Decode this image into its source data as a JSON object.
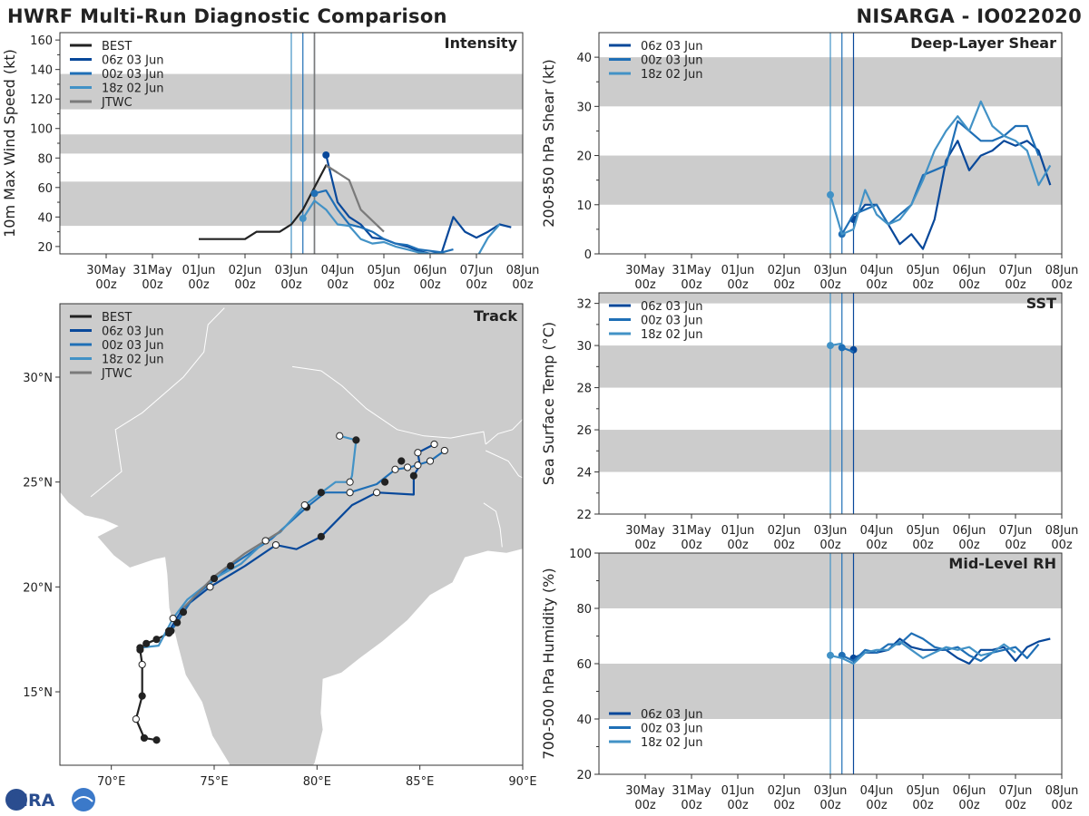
{
  "header": {
    "left_title": "HWRF Multi-Run Diagnostic Comparison",
    "right_title": "NISARGA - IO022020",
    "logo_text": "CIRA"
  },
  "colors": {
    "best": "#222222",
    "run06z": "#08489a",
    "run00z": "#1f6fb6",
    "run18z": "#4292c6",
    "jtwc": "#7a7a7a",
    "band": "#cccccc",
    "land": "#cccccc"
  },
  "time_axis": {
    "min": -1.0,
    "max": 9.0,
    "ticks": [
      0,
      1,
      2,
      3,
      4,
      5,
      6,
      7,
      8,
      9
    ],
    "labels": [
      [
        "30May",
        "00z"
      ],
      [
        "31May",
        "00z"
      ],
      [
        "01Jun",
        "00z"
      ],
      [
        "02Jun",
        "00z"
      ],
      [
        "03Jun",
        "00z"
      ],
      [
        "04Jun",
        "00z"
      ],
      [
        "05Jun",
        "00z"
      ],
      [
        "06Jun",
        "00z"
      ],
      [
        "07Jun",
        "00z"
      ],
      [
        "08Jun",
        "00z"
      ]
    ],
    "run_init_lines": [
      4.0,
      4.25,
      4.5
    ]
  },
  "chart_data": [
    {
      "id": "intensity",
      "type": "line",
      "title": "Intensity",
      "ylabel": "10m Max Wind Speed (kt)",
      "ylim": [
        15,
        165
      ],
      "yticks": [
        20,
        40,
        60,
        80,
        100,
        120,
        140,
        160
      ],
      "shaded_bands": [
        [
          34,
          64
        ],
        [
          83,
          96
        ],
        [
          113,
          137
        ]
      ],
      "extra_lines": [
        {
          "x": 4.5,
          "color_key": "jtwc",
          "width": 1.6
        }
      ],
      "legend": [
        "BEST",
        "06z 03 Jun",
        "00z 03 Jun",
        "18z 02 Jun",
        "JTWC"
      ],
      "series": [
        {
          "name": "BEST",
          "color_key": "best",
          "width": 2.2,
          "x": [
            2.0,
            2.25,
            2.5,
            2.75,
            3.0,
            3.25,
            3.5,
            3.75,
            4.0,
            4.25,
            4.5
          ],
          "y": [
            25,
            25,
            25,
            25,
            25,
            30,
            30,
            30,
            35,
            45,
            60
          ]
        },
        {
          "name": "BEST2",
          "color_key": "best",
          "width": 2.2,
          "x": [
            4.5,
            4.75,
            5.0
          ],
          "y": [
            60,
            75,
            70
          ]
        },
        {
          "name": "06z 03 Jun",
          "color_key": "run06z",
          "width": 2.2,
          "marker_first": true,
          "x": [
            4.75,
            5.0,
            5.25,
            5.5,
            5.75,
            6.0,
            6.25,
            6.5,
            6.75,
            7.0,
            7.25,
            7.5,
            7.75,
            8.0,
            8.25,
            8.5,
            8.75
          ],
          "y": [
            82,
            50,
            40,
            35,
            26,
            25,
            22,
            20,
            17,
            15,
            16,
            40,
            30,
            26,
            30,
            35,
            33
          ]
        },
        {
          "name": "00z 03 Jun",
          "color_key": "run00z",
          "width": 2.2,
          "marker_first": true,
          "x": [
            4.5,
            4.75,
            5.0,
            5.25,
            5.5,
            5.75,
            6.0,
            6.25,
            6.5,
            6.75,
            7.0,
            7.25,
            7.5
          ],
          "y": [
            56,
            58,
            45,
            35,
            33,
            30,
            25,
            22,
            21,
            18,
            17,
            16,
            18
          ]
        },
        {
          "name": "18z 02 Jun",
          "color_key": "run18z",
          "width": 2.2,
          "marker_first": true,
          "x": [
            4.25,
            4.5,
            4.75,
            5.0,
            5.25,
            5.5,
            5.75,
            6.0,
            6.25,
            6.5,
            6.75,
            7.0,
            7.25,
            7.5,
            7.75,
            8.0,
            8.25,
            8.5
          ],
          "y": [
            39,
            51,
            45,
            35,
            34,
            25,
            22,
            23,
            20,
            18,
            16,
            15,
            15,
            14,
            13,
            12,
            26,
            35
          ]
        },
        {
          "name": "JTWC",
          "color_key": "jtwc",
          "width": 2.2,
          "x": [
            4.75,
            5.0,
            5.25,
            5.5,
            6.0
          ],
          "y": [
            75,
            70,
            65,
            45,
            30
          ]
        }
      ]
    },
    {
      "id": "shear",
      "type": "line",
      "title": "Deep-Layer Shear",
      "ylabel": "200-850 hPa Shear (kt)",
      "ylim": [
        0,
        45
      ],
      "yticks": [
        0,
        10,
        20,
        30,
        40
      ],
      "shaded_bands": [
        [
          10,
          20
        ],
        [
          30,
          40
        ]
      ],
      "legend": [
        "06z 03 Jun",
        "00z 03 Jun",
        "18z 02 Jun"
      ],
      "series": [
        {
          "name": "06z 03 Jun",
          "color_key": "run06z",
          "width": 2.2,
          "marker_first": true,
          "x": [
            4.5,
            4.75,
            5.0,
            5.25,
            5.5,
            5.75,
            6.0,
            6.25,
            6.5,
            6.75,
            7.0,
            7.25,
            7.5,
            7.75,
            8.0,
            8.25,
            8.5,
            8.75
          ],
          "y": [
            7,
            10,
            10,
            6,
            2,
            4,
            1,
            7,
            19,
            23,
            17,
            20,
            21,
            23,
            22,
            23,
            21,
            14
          ]
        },
        {
          "name": "00z 03 Jun",
          "color_key": "run00z",
          "width": 2.2,
          "marker_first": true,
          "x": [
            4.25,
            4.5,
            4.75,
            5.0,
            5.25,
            5.5,
            5.75,
            6.0,
            6.25,
            6.5,
            6.75,
            7.0,
            7.25,
            7.5,
            7.75,
            8.0,
            8.25,
            8.5
          ],
          "y": [
            4,
            8,
            9,
            10,
            6,
            8,
            10,
            16,
            17,
            18,
            27,
            25,
            23,
            23,
            24,
            26,
            26,
            20
          ]
        },
        {
          "name": "18z 02 Jun",
          "color_key": "run18z",
          "width": 2.2,
          "marker_first": true,
          "x": [
            4.0,
            4.25,
            4.5,
            4.75,
            5.0,
            5.25,
            5.5,
            5.75,
            6.0,
            6.25,
            6.5,
            6.75,
            7.0,
            7.25,
            7.5,
            7.75,
            8.0,
            8.25,
            8.5,
            8.75
          ],
          "y": [
            12,
            4,
            5,
            13,
            8,
            6,
            7,
            10,
            15,
            21,
            25,
            28,
            25,
            31,
            26,
            24,
            23,
            21,
            14,
            18
          ]
        }
      ]
    },
    {
      "id": "sst",
      "type": "line",
      "title": "SST",
      "ylabel": "Sea Surface Temp (°C)",
      "ylim": [
        22,
        32.5
      ],
      "yticks": [
        22,
        24,
        26,
        28,
        30,
        32
      ],
      "shaded_bands": [
        [
          24,
          26
        ],
        [
          28,
          30
        ],
        [
          32,
          32.5
        ]
      ],
      "legend": [
        "06z 03 Jun",
        "00z 03 Jun",
        "18z 02 Jun"
      ],
      "series": [
        {
          "name": "06z 03 Jun",
          "color_key": "run06z",
          "width": 2.2,
          "marker_first": true,
          "x": [
            4.5
          ],
          "y": [
            29.8
          ]
        },
        {
          "name": "00z 03 Jun",
          "color_key": "run00z",
          "width": 2.2,
          "marker_first": true,
          "x": [
            4.25,
            4.5
          ],
          "y": [
            29.9,
            29.7
          ]
        },
        {
          "name": "18z 02 Jun",
          "color_key": "run18z",
          "width": 2.2,
          "marker_first": true,
          "x": [
            4.0,
            4.25
          ],
          "y": [
            30.0,
            30.1
          ]
        }
      ]
    },
    {
      "id": "rh",
      "type": "line",
      "title": "Mid-Level RH",
      "ylabel": "700-500 hPa Humidity (%)",
      "ylim": [
        20,
        100
      ],
      "yticks": [
        20,
        40,
        60,
        80,
        100
      ],
      "shaded_bands": [
        [
          40,
          60
        ],
        [
          80,
          100
        ]
      ],
      "legend": [
        "06z 03 Jun",
        "00z 03 Jun",
        "18z 02 Jun"
      ],
      "legend_position": "bottom-left",
      "series": [
        {
          "name": "06z 03 Jun",
          "color_key": "run06z",
          "width": 2.2,
          "marker_first": true,
          "x": [
            4.5,
            4.75,
            5.0,
            5.25,
            5.5,
            5.75,
            6.0,
            6.25,
            6.5,
            6.75,
            7.0,
            7.25,
            7.5,
            7.75,
            8.0,
            8.25,
            8.5,
            8.75
          ],
          "y": [
            62,
            64,
            64,
            65,
            69,
            66,
            65,
            65,
            65,
            62,
            60,
            65,
            65,
            66,
            61,
            66,
            68,
            69
          ]
        },
        {
          "name": "00z 03 Jun",
          "color_key": "run00z",
          "width": 2.2,
          "marker_first": true,
          "x": [
            4.25,
            4.5,
            4.75,
            5.0,
            5.25,
            5.5,
            5.75,
            6.0,
            6.25,
            6.5,
            6.75,
            7.0,
            7.25,
            7.5,
            7.75,
            8.0,
            8.25,
            8.5
          ],
          "y": [
            63,
            61,
            65,
            64,
            67,
            67,
            71,
            69,
            66,
            65,
            66,
            63,
            61,
            64,
            65,
            66,
            62,
            67
          ]
        },
        {
          "name": "18z 02 Jun",
          "color_key": "run18z",
          "width": 2.2,
          "marker_first": true,
          "x": [
            4.0,
            4.25,
            4.5,
            4.75,
            5.0,
            5.25,
            5.5,
            5.75,
            6.0,
            6.25,
            6.5,
            6.75,
            7.0,
            7.25,
            7.5,
            7.75,
            8.0
          ],
          "y": [
            63,
            62,
            60,
            64,
            65,
            65,
            68,
            65,
            62,
            64,
            66,
            65,
            66,
            63,
            64,
            67,
            64
          ]
        }
      ]
    },
    {
      "id": "track",
      "type": "scatter",
      "title": "Track",
      "xlim": [
        67.5,
        90
      ],
      "ylim": [
        11.5,
        33.5
      ],
      "xticks": [
        70,
        75,
        80,
        85,
        90
      ],
      "xtick_labels": [
        "70°E",
        "75°E",
        "80°E",
        "85°E",
        "90°E"
      ],
      "yticks": [
        15,
        20,
        25,
        30
      ],
      "ytick_labels": [
        "15°N",
        "20°N",
        "25°N",
        "30°N"
      ],
      "legend": [
        "BEST",
        "06z 03 Jun",
        "00z 03 Jun",
        "18z 02 Jun",
        "JTWC"
      ],
      "series": [
        {
          "name": "BEST",
          "color_key": "best",
          "lon": [
            72.2,
            71.6,
            71.2,
            71.5,
            71.5,
            71.4,
            71.7,
            72.2,
            72.8,
            73.2,
            73.5
          ],
          "lat": [
            12.7,
            12.8,
            13.7,
            14.8,
            16.3,
            17.0,
            17.3,
            17.5,
            17.8,
            18.3,
            18.8
          ],
          "filled": [
            true,
            true,
            false,
            true,
            false,
            true,
            true,
            true,
            true,
            true,
            true
          ]
        },
        {
          "name": "06z 03 Jun",
          "color_key": "run06z",
          "lon": [
            72.8,
            73.5,
            74.8,
            76.5,
            78.0,
            79.0,
            80.2,
            81.7,
            82.9,
            84.7,
            84.7,
            85.0,
            84.9,
            85.7
          ],
          "lat": [
            17.9,
            19.0,
            20.0,
            21.0,
            22.0,
            21.8,
            22.4,
            23.9,
            24.5,
            24.4,
            25.3,
            25.8,
            26.4,
            26.8
          ],
          "filled": [
            true,
            false,
            false,
            true,
            false,
            false,
            true,
            false,
            false,
            false,
            true,
            false,
            false,
            false
          ]
        },
        {
          "name": "00z 03 Jun",
          "color_key": "run00z",
          "lon": [
            72.9,
            74.0,
            75.8,
            77.8,
            79.5,
            80.4,
            81.6,
            82.9,
            83.8,
            84.5,
            85.5,
            86.2
          ],
          "lat": [
            17.9,
            19.5,
            21.0,
            22.3,
            23.8,
            24.5,
            24.5,
            24.9,
            25.6,
            25.7,
            26.0,
            26.5
          ],
          "filled": [
            true,
            false,
            true,
            false,
            true,
            true,
            false,
            false,
            false,
            false,
            false,
            false
          ],
          "markers_only": [
            [
              80.2,
              24.5,
              true
            ],
            [
              83.3,
              25.0,
              true
            ],
            [
              84.1,
              26.0,
              true
            ],
            [
              84.4,
              25.7,
              false
            ],
            [
              84.9,
              25.8,
              false
            ]
          ]
        },
        {
          "name": "18z 02 Jun",
          "color_key": "run18z",
          "lon": [
            71.4,
            72.3,
            73.0,
            73.7,
            75.0,
            76.3,
            77.5,
            78.2,
            79.4,
            80.9,
            81.6,
            81.7,
            81.9,
            81.1
          ],
          "lat": [
            17.1,
            17.2,
            18.5,
            19.4,
            20.4,
            21.1,
            22.2,
            22.6,
            23.9,
            25.0,
            25.0,
            25.3,
            27.0,
            27.2
          ],
          "filled": [
            true,
            true,
            false,
            true,
            true,
            false,
            false,
            true,
            false,
            false,
            false,
            false,
            true,
            false
          ]
        },
        {
          "name": "JTWC",
          "color_key": "jtwc",
          "lon": [
            73.5,
            75.0,
            76.5,
            78.3
          ],
          "lat": [
            19.0,
            20.5,
            21.6,
            22.7
          ],
          "filled": [
            false,
            false,
            false,
            false
          ]
        }
      ]
    }
  ]
}
